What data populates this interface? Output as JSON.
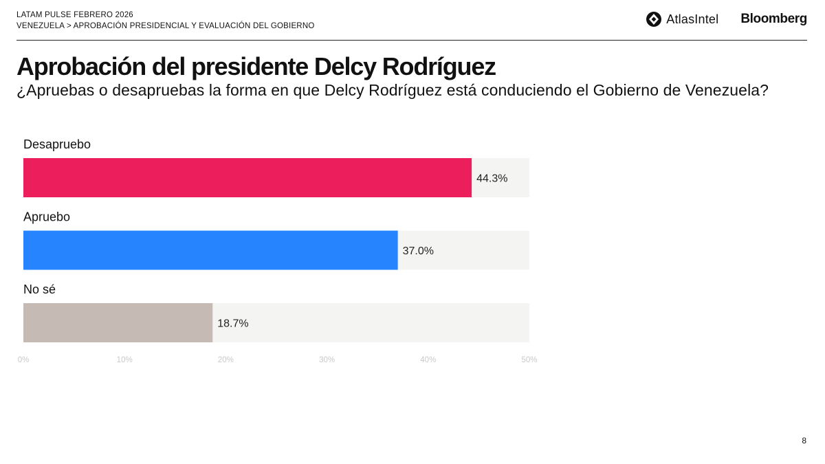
{
  "header": {
    "line1": "LATAM PULSE FEBRERO 2026",
    "line2": "VENEZUELA > APROBACIÓN PRESIDENCIAL Y EVALUACIÓN DEL GOBIERNO"
  },
  "logos": {
    "atlas": "AtlasIntel",
    "bloomberg": "Bloomberg"
  },
  "page_number": "8",
  "colors": {
    "disapprove": "#ed1e5c",
    "approve": "#2684ff",
    "dont_know": "#c6bbb4",
    "track": "#f4f4f3",
    "tick_label": "#c9c9c9"
  },
  "chart_data": {
    "type": "bar",
    "orientation": "horizontal",
    "title": "Aprobación del presidente Delcy Rodríguez",
    "subtitle": "¿Apruebas o desapruebas la forma en que Delcy Rodríguez está conduciendo el Gobierno de Venezuela?",
    "categories": [
      "Desapruebo",
      "Apruebo",
      "No sé"
    ],
    "values": [
      44.3,
      37.0,
      18.7
    ],
    "value_labels": [
      "44.3%",
      "37.0%",
      "18.7%"
    ],
    "xlim": [
      0,
      50
    ],
    "ticks": [
      0,
      10,
      20,
      30,
      40,
      50
    ],
    "tick_labels": [
      "0%",
      "10%",
      "20%",
      "30%",
      "40%",
      "50%"
    ],
    "xlabel": "",
    "ylabel": "",
    "grid": false
  }
}
